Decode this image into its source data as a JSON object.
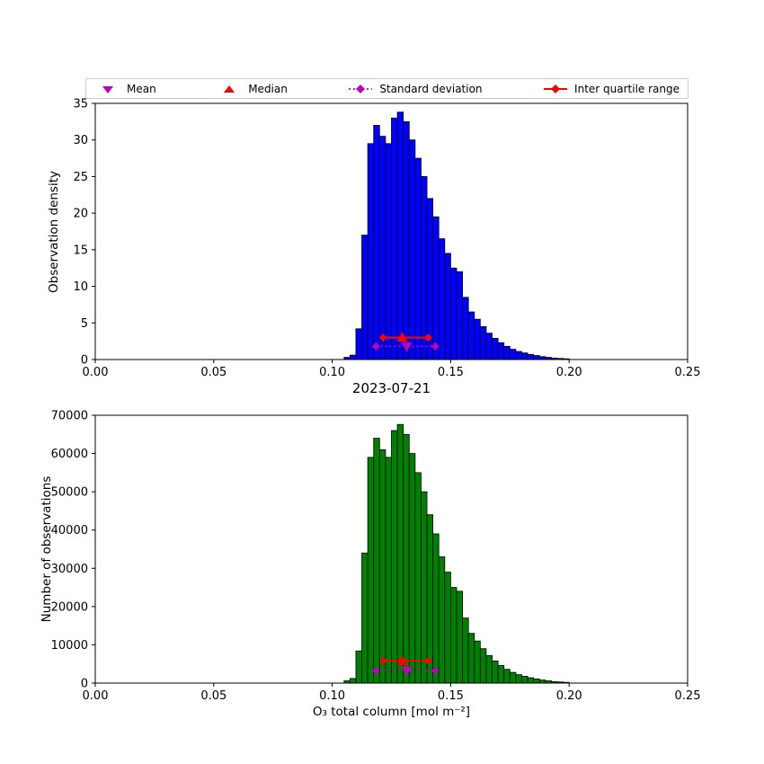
{
  "figure": {
    "legend": {
      "mean_label": "Mean",
      "median_label": "Median",
      "std_label": "Standard deviation",
      "iqr_label": "Inter quartile range"
    },
    "colors": {
      "mean": "#bf00bf",
      "median": "#ff0000",
      "std": "#bf00bf",
      "iqr": "#ff0000",
      "top_hist": "#0000ff",
      "bottom_hist": "#008000"
    }
  },
  "chart_data": [
    {
      "type": "bar",
      "title": "",
      "xlabel": "",
      "ylabel": "Observation density",
      "xlim": [
        0.0,
        0.25
      ],
      "ylim": [
        0,
        35
      ],
      "xticks": [
        0,
        0.05,
        0.1,
        0.15,
        0.2,
        0.25
      ],
      "xtick_labels": [
        "0.00",
        "0.05",
        "0.10",
        "0.15",
        "0.20",
        "0.25"
      ],
      "yticks": [
        0,
        5,
        10,
        15,
        20,
        25,
        30,
        35
      ],
      "bin_start": 0.105,
      "bin_width": 0.0025,
      "values": [
        0.3,
        0.6,
        4.2,
        17,
        29.5,
        32,
        30.5,
        29.5,
        33,
        33.8,
        32.5,
        30,
        27.5,
        25,
        22,
        19.5,
        16.5,
        14.5,
        12.5,
        12,
        8.5,
        6.5,
        5.5,
        4.5,
        3.6,
        2.9,
        2.3,
        1.8,
        1.4,
        1.1,
        0.9,
        0.7,
        0.55,
        0.4,
        0.3,
        0.2,
        0.15,
        0.1
      ],
      "bar_color": "#0000ff",
      "grid": false,
      "stats": {
        "mean": 0.1315,
        "median": 0.1295,
        "std_range": [
          0.1185,
          0.1435
        ],
        "iqr_range": [
          0.1215,
          0.1405
        ],
        "std_y": 1.8,
        "iqr_y": 3.0
      }
    },
    {
      "type": "bar",
      "title": "2023-07-21",
      "xlabel": "O₃ total column [mol m⁻²]",
      "ylabel": "Number of observations",
      "xlim": [
        0.0,
        0.25
      ],
      "ylim": [
        0,
        70000
      ],
      "xticks": [
        0,
        0.05,
        0.1,
        0.15,
        0.2,
        0.25
      ],
      "xtick_labels": [
        "0.00",
        "0.05",
        "0.10",
        "0.15",
        "0.20",
        "0.25"
      ],
      "yticks": [
        0,
        10000,
        20000,
        30000,
        40000,
        50000,
        60000,
        70000
      ],
      "bin_start": 0.105,
      "bin_width": 0.0025,
      "values": [
        600,
        1200,
        8400,
        34000,
        59000,
        64000,
        61000,
        59000,
        66000,
        67600,
        65000,
        60000,
        55000,
        50000,
        44000,
        39000,
        33000,
        29000,
        25000,
        24000,
        17000,
        13000,
        11000,
        9000,
        7200,
        5800,
        4600,
        3600,
        2800,
        2200,
        1800,
        1400,
        1100,
        800,
        600,
        400,
        300,
        200
      ],
      "bar_color": "#008000",
      "grid": false,
      "stats": {
        "mean": 0.1315,
        "median": 0.1295,
        "std_range": [
          0.1185,
          0.1435
        ],
        "iqr_range": [
          0.1215,
          0.1405
        ],
        "std_y": 3300,
        "iqr_y": 5800
      }
    }
  ]
}
